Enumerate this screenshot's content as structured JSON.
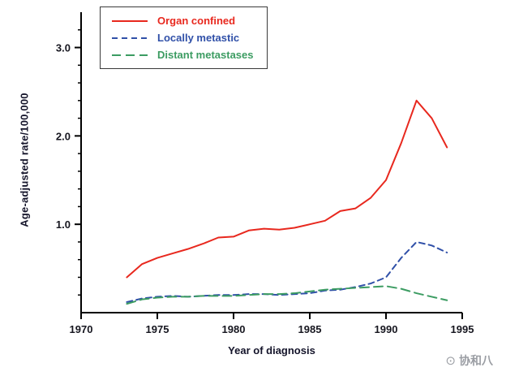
{
  "chart_data": {
    "type": "line",
    "title": "",
    "xlabel": "Year of diagnosis",
    "ylabel": "Age-adjusted rate/100,000",
    "x_range": [
      1970,
      1995
    ],
    "y_range": [
      0,
      3.4
    ],
    "x_ticks": [
      1970,
      1975,
      1980,
      1985,
      1990,
      1995
    ],
    "y_ticks": [
      1.0,
      2.0,
      3.0
    ],
    "y_minor_step": 0.2,
    "y_minor_max": 3.2,
    "grid": false,
    "legend_position": "top-left",
    "years": [
      1973,
      1974,
      1975,
      1976,
      1977,
      1978,
      1979,
      1980,
      1981,
      1982,
      1983,
      1984,
      1985,
      1986,
      1987,
      1988,
      1989,
      1990,
      1991,
      1992,
      1993,
      1994
    ],
    "series": [
      {
        "name": "Organ confined",
        "color": "#e8281e",
        "dash": "",
        "width": 2,
        "values": [
          0.4,
          0.55,
          0.62,
          0.67,
          0.72,
          0.78,
          0.85,
          0.86,
          0.93,
          0.95,
          0.94,
          0.96,
          1.0,
          1.04,
          1.15,
          1.18,
          1.3,
          1.5,
          1.92,
          2.4,
          2.2,
          1.87
        ]
      },
      {
        "name": "Locally metastic",
        "color": "#3050a8",
        "dash": "7,5",
        "width": 2,
        "values": [
          0.12,
          0.16,
          0.18,
          0.19,
          0.18,
          0.19,
          0.2,
          0.2,
          0.21,
          0.21,
          0.2,
          0.21,
          0.22,
          0.25,
          0.26,
          0.29,
          0.33,
          0.4,
          0.62,
          0.8,
          0.76,
          0.68
        ]
      },
      {
        "name": "Distant metastases",
        "color": "#3c9c62",
        "dash": "11,6",
        "width": 2,
        "values": [
          0.1,
          0.15,
          0.17,
          0.18,
          0.18,
          0.19,
          0.19,
          0.19,
          0.2,
          0.21,
          0.21,
          0.22,
          0.24,
          0.26,
          0.27,
          0.28,
          0.29,
          0.3,
          0.27,
          0.22,
          0.18,
          0.14
        ]
      }
    ]
  },
  "axis_color": "#000000",
  "watermark": {
    "icon": "⊙",
    "text": "协和八"
  }
}
